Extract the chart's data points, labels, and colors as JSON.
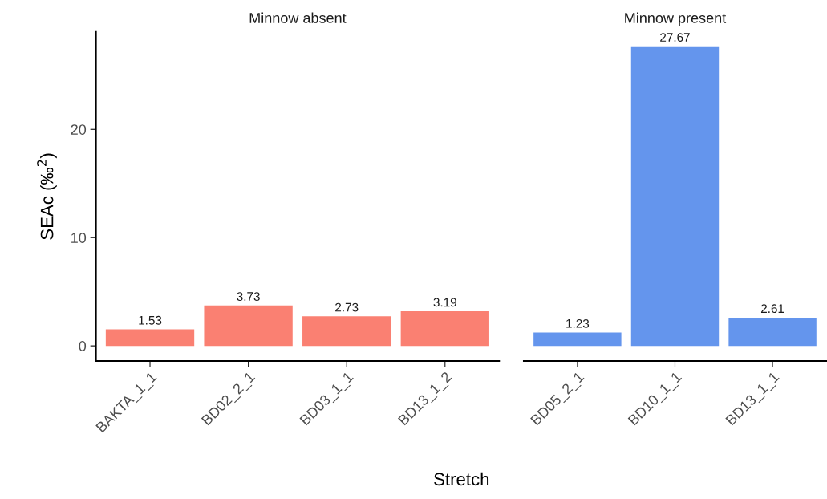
{
  "chart_data": [
    {
      "type": "bar",
      "title": "Minnow absent",
      "xlabel": "Stretch",
      "ylabel": "SEAc (‰$^{2}$)",
      "categories": [
        "BAKTA_1_1",
        "BD02_2_1",
        "BD03_1_1",
        "BD13_1_2"
      ],
      "values": [
        1.53,
        3.73,
        2.73,
        3.19
      ],
      "color": "#fa8072",
      "ylim": [
        -1.4,
        29.0
      ],
      "yticks": [
        0,
        10,
        20
      ],
      "data_labels": true,
      "grid": false,
      "legend": false
    },
    {
      "type": "bar",
      "title": "Minnow present",
      "categories": [
        "BD05_2_1",
        "BD10_1_1",
        "BD13_1_1"
      ],
      "values": [
        1.23,
        27.67,
        2.61
      ],
      "color": "#6495ed",
      "data_labels": true,
      "grid": false,
      "legend": false,
      "tick_labels": "x"
    }
  ]
}
